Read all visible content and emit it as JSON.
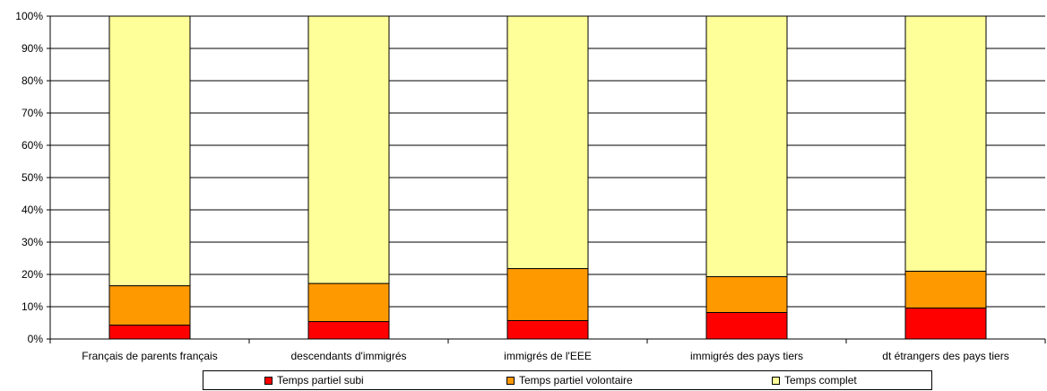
{
  "chart_data": {
    "type": "bar",
    "stacked": true,
    "normalized_percent": true,
    "categories": [
      "Français de parents français",
      "descendants d'immigrés",
      "immigrés de l'EEE",
      "immigrés des pays tiers",
      "dt étrangers des pays tiers"
    ],
    "series": [
      {
        "name": "Temps partiel subi",
        "color": "#ff0000",
        "values": [
          4.3,
          5.4,
          5.7,
          8.2,
          9.6
        ]
      },
      {
        "name": "Temps partiel volontaire",
        "color": "#ff9900",
        "values": [
          12.2,
          11.8,
          16.1,
          11.1,
          11.4
        ]
      },
      {
        "name": "Temps complet",
        "color": "#ffff99",
        "values": [
          83.5,
          82.8,
          78.2,
          80.7,
          79.0
        ]
      }
    ],
    "yticks": [
      "0%",
      "10%",
      "20%",
      "30%",
      "40%",
      "50%",
      "60%",
      "70%",
      "80%",
      "90%",
      "100%"
    ],
    "ylim": [
      0,
      100
    ],
    "grid": true,
    "legend_position": "bottom",
    "title": "",
    "xlabel": "",
    "ylabel": ""
  }
}
